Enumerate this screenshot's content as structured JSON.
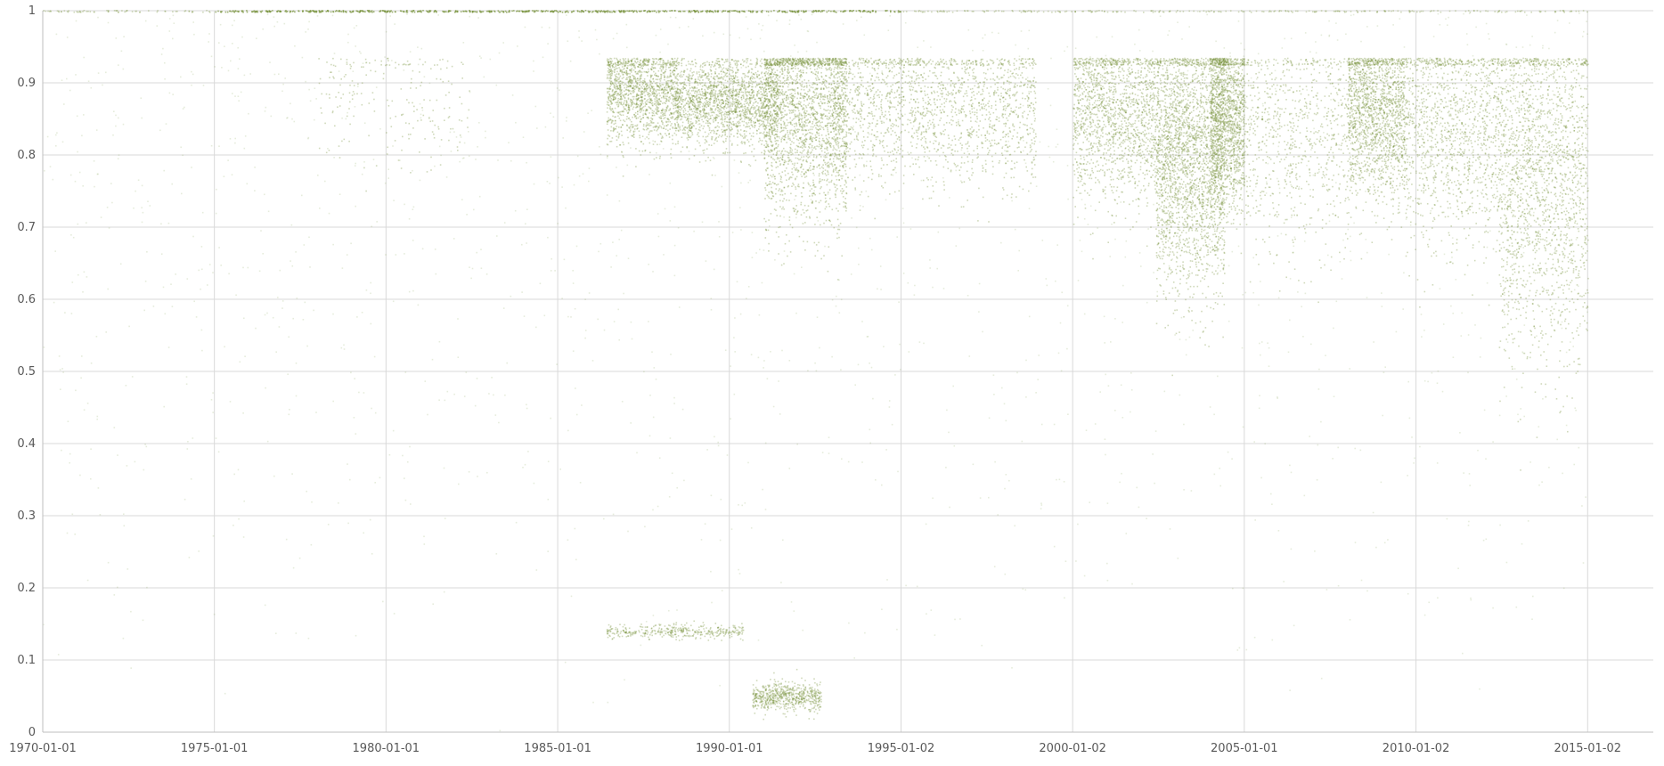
{
  "chart_data": {
    "type": "scatter",
    "title": "",
    "xlabel": "",
    "ylabel": "",
    "x_axis_kind": "date",
    "xlim": [
      "1970-01-01",
      "2016-12-01"
    ],
    "ylim": [
      0,
      1
    ],
    "x_ticks": [
      "1970-01-01",
      "1975-01-01",
      "1980-01-01",
      "1985-01-01",
      "1990-01-01",
      "1995-01-02",
      "2000-01-02",
      "2005-01-01",
      "2010-01-02",
      "2015-01-02"
    ],
    "y_ticks": [
      0,
      0.1,
      0.2,
      0.3,
      0.4,
      0.5,
      0.6,
      0.7,
      0.8,
      0.9,
      1
    ],
    "y_tick_labels": [
      "0",
      "0.1",
      "0.2",
      "0.3",
      "0.4",
      "0.5",
      "0.6",
      "0.7",
      "0.8",
      "0.9",
      "1"
    ],
    "grid": true,
    "legend": "none",
    "marker_color": "#77933c",
    "density_clusters": [
      {
        "x_start": "1986-06-01",
        "x_end": "1988-06-01",
        "y_center": 0.89,
        "y_spread": 0.035,
        "density": 0.55
      },
      {
        "x_start": "1988-06-01",
        "x_end": "1991-06-01",
        "y_center": 0.875,
        "y_spread": 0.03,
        "density": 0.75
      },
      {
        "x_start": "1991-01-01",
        "x_end": "1993-06-01",
        "y_center": 0.86,
        "y_spread": 0.075,
        "density": 0.85
      },
      {
        "x_start": "1993-01-01",
        "x_end": "1998-12-01",
        "y_center": 0.87,
        "y_spread": 0.055,
        "density": 0.7
      },
      {
        "x_start": "2000-01-02",
        "x_end": "2002-06-01",
        "y_center": 0.86,
        "y_spread": 0.06,
        "density": 0.6
      },
      {
        "x_start": "2002-06-01",
        "x_end": "2004-06-01",
        "y_center": 0.8,
        "y_spread": 0.09,
        "density": 1.0
      },
      {
        "x_start": "2004-01-01",
        "x_end": "2005-01-01",
        "y_center": 0.85,
        "y_spread": 0.06,
        "density": 0.55
      },
      {
        "x_start": "2005-01-01",
        "x_end": "2008-01-01",
        "y_center": 0.83,
        "y_spread": 0.08,
        "density": 0.3
      },
      {
        "x_start": "2008-01-01",
        "x_end": "2009-09-01",
        "y_center": 0.86,
        "y_spread": 0.06,
        "density": 0.65
      },
      {
        "x_start": "2009-09-01",
        "x_end": "2012-06-01",
        "y_center": 0.84,
        "y_spread": 0.08,
        "density": 0.5
      },
      {
        "x_start": "2012-06-01",
        "x_end": "2015-01-02",
        "y_center": 0.77,
        "y_spread": 0.12,
        "density": 0.75
      },
      {
        "x_start": "1978-01-01",
        "x_end": "1982-06-01",
        "y_center": 0.88,
        "y_spread": 0.05,
        "density": 0.08
      },
      {
        "x_start": "1990-09-01",
        "x_end": "1992-09-01",
        "y_center": 0.05,
        "y_spread": 0.01,
        "density": 0.25
      },
      {
        "x_start": "1986-06-01",
        "x_end": "1990-06-01",
        "y_center": 0.14,
        "y_spread": 0.005,
        "density": 0.15
      }
    ],
    "top_band": {
      "x_start": "1970-01-01",
      "x_end": "2015-01-02",
      "y": 1.0,
      "dense_x_start": "1975-01-01",
      "dense_x_end": "1995-01-02"
    }
  }
}
